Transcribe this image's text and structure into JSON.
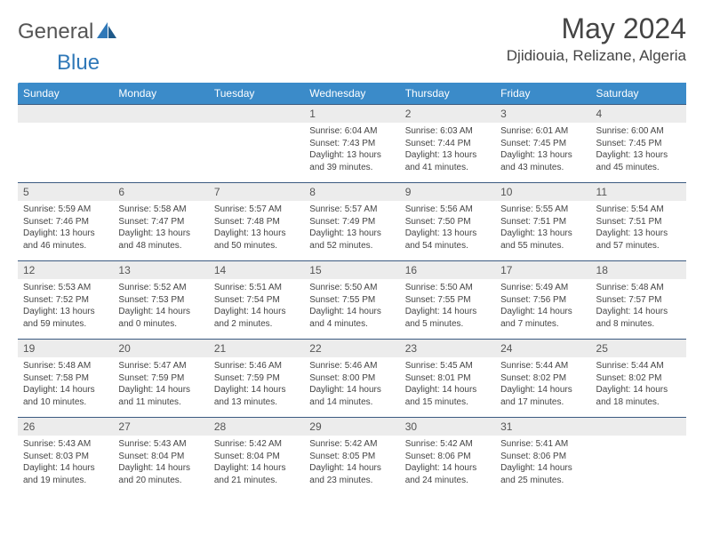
{
  "brand": {
    "name1": "General",
    "name2": "Blue"
  },
  "title": "May 2024",
  "location": "Djidiouia, Relizane, Algeria",
  "day_headers": [
    "Sunday",
    "Monday",
    "Tuesday",
    "Wednesday",
    "Thursday",
    "Friday",
    "Saturday"
  ],
  "colors": {
    "header_bg": "#3b8bc9",
    "daynum_bg": "#ececec",
    "rule": "#3b5a80",
    "text": "#444444",
    "logo_gray": "#555555",
    "logo_blue": "#2f78b8"
  },
  "fonts": {
    "title_size": 32,
    "location_size": 17,
    "header_size": 12,
    "daynum_size": 12,
    "body_size": 10
  },
  "weeks": [
    [
      {
        "n": "",
        "t": ""
      },
      {
        "n": "",
        "t": ""
      },
      {
        "n": "",
        "t": ""
      },
      {
        "n": "1",
        "t": "Sunrise: 6:04 AM\nSunset: 7:43 PM\nDaylight: 13 hours and 39 minutes."
      },
      {
        "n": "2",
        "t": "Sunrise: 6:03 AM\nSunset: 7:44 PM\nDaylight: 13 hours and 41 minutes."
      },
      {
        "n": "3",
        "t": "Sunrise: 6:01 AM\nSunset: 7:45 PM\nDaylight: 13 hours and 43 minutes."
      },
      {
        "n": "4",
        "t": "Sunrise: 6:00 AM\nSunset: 7:45 PM\nDaylight: 13 hours and 45 minutes."
      }
    ],
    [
      {
        "n": "5",
        "t": "Sunrise: 5:59 AM\nSunset: 7:46 PM\nDaylight: 13 hours and 46 minutes."
      },
      {
        "n": "6",
        "t": "Sunrise: 5:58 AM\nSunset: 7:47 PM\nDaylight: 13 hours and 48 minutes."
      },
      {
        "n": "7",
        "t": "Sunrise: 5:57 AM\nSunset: 7:48 PM\nDaylight: 13 hours and 50 minutes."
      },
      {
        "n": "8",
        "t": "Sunrise: 5:57 AM\nSunset: 7:49 PM\nDaylight: 13 hours and 52 minutes."
      },
      {
        "n": "9",
        "t": "Sunrise: 5:56 AM\nSunset: 7:50 PM\nDaylight: 13 hours and 54 minutes."
      },
      {
        "n": "10",
        "t": "Sunrise: 5:55 AM\nSunset: 7:51 PM\nDaylight: 13 hours and 55 minutes."
      },
      {
        "n": "11",
        "t": "Sunrise: 5:54 AM\nSunset: 7:51 PM\nDaylight: 13 hours and 57 minutes."
      }
    ],
    [
      {
        "n": "12",
        "t": "Sunrise: 5:53 AM\nSunset: 7:52 PM\nDaylight: 13 hours and 59 minutes."
      },
      {
        "n": "13",
        "t": "Sunrise: 5:52 AM\nSunset: 7:53 PM\nDaylight: 14 hours and 0 minutes."
      },
      {
        "n": "14",
        "t": "Sunrise: 5:51 AM\nSunset: 7:54 PM\nDaylight: 14 hours and 2 minutes."
      },
      {
        "n": "15",
        "t": "Sunrise: 5:50 AM\nSunset: 7:55 PM\nDaylight: 14 hours and 4 minutes."
      },
      {
        "n": "16",
        "t": "Sunrise: 5:50 AM\nSunset: 7:55 PM\nDaylight: 14 hours and 5 minutes."
      },
      {
        "n": "17",
        "t": "Sunrise: 5:49 AM\nSunset: 7:56 PM\nDaylight: 14 hours and 7 minutes."
      },
      {
        "n": "18",
        "t": "Sunrise: 5:48 AM\nSunset: 7:57 PM\nDaylight: 14 hours and 8 minutes."
      }
    ],
    [
      {
        "n": "19",
        "t": "Sunrise: 5:48 AM\nSunset: 7:58 PM\nDaylight: 14 hours and 10 minutes."
      },
      {
        "n": "20",
        "t": "Sunrise: 5:47 AM\nSunset: 7:59 PM\nDaylight: 14 hours and 11 minutes."
      },
      {
        "n": "21",
        "t": "Sunrise: 5:46 AM\nSunset: 7:59 PM\nDaylight: 14 hours and 13 minutes."
      },
      {
        "n": "22",
        "t": "Sunrise: 5:46 AM\nSunset: 8:00 PM\nDaylight: 14 hours and 14 minutes."
      },
      {
        "n": "23",
        "t": "Sunrise: 5:45 AM\nSunset: 8:01 PM\nDaylight: 14 hours and 15 minutes."
      },
      {
        "n": "24",
        "t": "Sunrise: 5:44 AM\nSunset: 8:02 PM\nDaylight: 14 hours and 17 minutes."
      },
      {
        "n": "25",
        "t": "Sunrise: 5:44 AM\nSunset: 8:02 PM\nDaylight: 14 hours and 18 minutes."
      }
    ],
    [
      {
        "n": "26",
        "t": "Sunrise: 5:43 AM\nSunset: 8:03 PM\nDaylight: 14 hours and 19 minutes."
      },
      {
        "n": "27",
        "t": "Sunrise: 5:43 AM\nSunset: 8:04 PM\nDaylight: 14 hours and 20 minutes."
      },
      {
        "n": "28",
        "t": "Sunrise: 5:42 AM\nSunset: 8:04 PM\nDaylight: 14 hours and 21 minutes."
      },
      {
        "n": "29",
        "t": "Sunrise: 5:42 AM\nSunset: 8:05 PM\nDaylight: 14 hours and 23 minutes."
      },
      {
        "n": "30",
        "t": "Sunrise: 5:42 AM\nSunset: 8:06 PM\nDaylight: 14 hours and 24 minutes."
      },
      {
        "n": "31",
        "t": "Sunrise: 5:41 AM\nSunset: 8:06 PM\nDaylight: 14 hours and 25 minutes."
      },
      {
        "n": "",
        "t": ""
      }
    ]
  ]
}
